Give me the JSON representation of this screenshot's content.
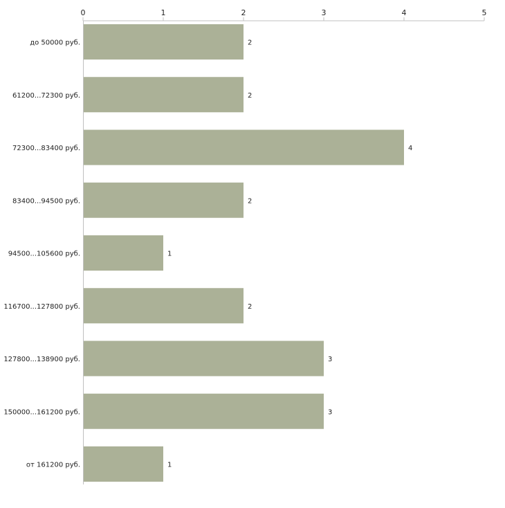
{
  "chart_data": {
    "type": "bar",
    "orientation": "horizontal",
    "categories": [
      "до 50000 руб.",
      "61200...72300 руб.",
      "72300...83400 руб.",
      "83400...94500 руб.",
      "94500...105600 руб.",
      "116700...127800 руб.",
      "127800...138900 руб.",
      "150000...161200 руб.",
      "от 161200 руб."
    ],
    "values": [
      2,
      2,
      4,
      2,
      1,
      2,
      3,
      3,
      1
    ],
    "xlim": [
      0,
      5
    ],
    "xticks": [
      "0",
      "1",
      "2",
      "3",
      "4",
      "5"
    ],
    "title": "",
    "xlabel": "",
    "ylabel": "",
    "grid": false,
    "bar_color": "#abb197",
    "axis_color": "#c0c0c0",
    "text_color": "#222222"
  }
}
